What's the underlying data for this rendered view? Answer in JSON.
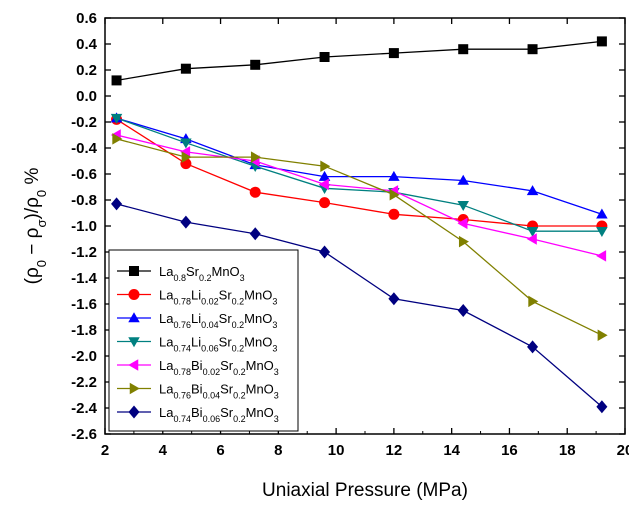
{
  "chart_data": {
    "type": "line",
    "xlabel": "Uniaxial Pressure (MPa)",
    "ylabel": {
      "parts": [
        {
          "t": "(ρ",
          "sub": false
        },
        {
          "t": "0",
          "sub": true
        },
        {
          "t": " − ρ",
          "sub": false
        },
        {
          "t": "σ",
          "sub": true
        },
        {
          "t": ")/ρ",
          "sub": false
        },
        {
          "t": "0",
          "sub": true
        },
        {
          "t": " %",
          "sub": false
        }
      ]
    },
    "xlim": [
      2,
      20
    ],
    "ylim": [
      -2.6,
      0.6
    ],
    "xticks": [
      2,
      4,
      6,
      8,
      10,
      12,
      14,
      16,
      18,
      20
    ],
    "yticks": [
      0.6,
      0.4,
      0.2,
      0.0,
      -0.2,
      -0.4,
      -0.6,
      -0.8,
      -1.0,
      -1.2,
      -1.4,
      -1.6,
      -1.8,
      -2.0,
      -2.2,
      -2.4,
      -2.6
    ],
    "legend_position": "bottom-left",
    "x": [
      2.4,
      4.8,
      7.2,
      9.6,
      12.0,
      14.4,
      16.8,
      19.2
    ],
    "series": [
      {
        "name": "La0.8Sr0.2MnO3",
        "name_parts": [
          {
            "t": "La",
            "sub": false
          },
          {
            "t": "0.8",
            "sub": true
          },
          {
            "t": "Sr",
            "sub": false
          },
          {
            "t": "0.2",
            "sub": true
          },
          {
            "t": "MnO",
            "sub": false
          },
          {
            "t": "3",
            "sub": true
          }
        ],
        "color": "#000000",
        "marker": "square",
        "values": [
          0.12,
          0.21,
          0.24,
          0.3,
          0.33,
          0.36,
          0.36,
          0.42
        ]
      },
      {
        "name": "La0.78Li0.02Sr0.2MnO3",
        "name_parts": [
          {
            "t": "La",
            "sub": false
          },
          {
            "t": "0.78",
            "sub": true
          },
          {
            "t": "Li",
            "sub": false
          },
          {
            "t": "0.02",
            "sub": true
          },
          {
            "t": "Sr",
            "sub": false
          },
          {
            "t": "0.2",
            "sub": true
          },
          {
            "t": "MnO",
            "sub": false
          },
          {
            "t": "3",
            "sub": true
          }
        ],
        "color": "#ff0000",
        "marker": "circle",
        "values": [
          -0.18,
          -0.52,
          -0.74,
          -0.82,
          -0.91,
          -0.95,
          -1.0,
          -1.0
        ]
      },
      {
        "name": "La0.76Li0.04Sr0.2MnO3",
        "name_parts": [
          {
            "t": "La",
            "sub": false
          },
          {
            "t": "0.76",
            "sub": true
          },
          {
            "t": "Li",
            "sub": false
          },
          {
            "t": "0.04",
            "sub": true
          },
          {
            "t": "Sr",
            "sub": false
          },
          {
            "t": "0.2",
            "sub": true
          },
          {
            "t": "MnO",
            "sub": false
          },
          {
            "t": "3",
            "sub": true
          }
        ],
        "color": "#0000ff",
        "marker": "triangle-up",
        "values": [
          -0.17,
          -0.33,
          -0.53,
          -0.62,
          -0.62,
          -0.65,
          -0.73,
          -0.91
        ]
      },
      {
        "name": "La0.74Li0.06Sr0.2MnO3",
        "name_parts": [
          {
            "t": "La",
            "sub": false
          },
          {
            "t": "0.74",
            "sub": true
          },
          {
            "t": "Li",
            "sub": false
          },
          {
            "t": "0.06",
            "sub": true
          },
          {
            "t": "Sr",
            "sub": false
          },
          {
            "t": "0.2",
            "sub": true
          },
          {
            "t": "MnO",
            "sub": false
          },
          {
            "t": "3",
            "sub": true
          }
        ],
        "color": "#008080",
        "marker": "triangle-down",
        "values": [
          -0.17,
          -0.36,
          -0.54,
          -0.71,
          -0.74,
          -0.84,
          -1.04,
          -1.04
        ]
      },
      {
        "name": "La0.78Bi0.02Sr0.2MnO3",
        "name_parts": [
          {
            "t": "La",
            "sub": false
          },
          {
            "t": "0.78",
            "sub": true
          },
          {
            "t": "Bi",
            "sub": false
          },
          {
            "t": "0.02",
            "sub": true
          },
          {
            "t": "Sr",
            "sub": false
          },
          {
            "t": "0.2",
            "sub": true
          },
          {
            "t": "MnO",
            "sub": false
          },
          {
            "t": "3",
            "sub": true
          }
        ],
        "color": "#ff00ff",
        "marker": "triangle-left",
        "values": [
          -0.3,
          -0.43,
          -0.5,
          -0.68,
          -0.73,
          -0.98,
          -1.1,
          -1.23
        ]
      },
      {
        "name": "La0.76Bi0.04Sr0.2MnO3",
        "name_parts": [
          {
            "t": "La",
            "sub": false
          },
          {
            "t": "0.76",
            "sub": true
          },
          {
            "t": "Bi",
            "sub": false
          },
          {
            "t": "0.04",
            "sub": true
          },
          {
            "t": "Sr",
            "sub": false
          },
          {
            "t": "0.2",
            "sub": true
          },
          {
            "t": "MnO",
            "sub": false
          },
          {
            "t": "3",
            "sub": true
          }
        ],
        "color": "#808000",
        "marker": "triangle-right",
        "values": [
          -0.33,
          -0.47,
          -0.47,
          -0.54,
          -0.76,
          -1.12,
          -1.58,
          -1.84
        ]
      },
      {
        "name": "La0.74Bi0.06Sr0.2MnO3",
        "name_parts": [
          {
            "t": "La",
            "sub": false
          },
          {
            "t": "0.74",
            "sub": true
          },
          {
            "t": "Bi",
            "sub": false
          },
          {
            "t": "0.06",
            "sub": true
          },
          {
            "t": "Sr",
            "sub": false
          },
          {
            "t": "0.2",
            "sub": true
          },
          {
            "t": "MnO",
            "sub": false
          },
          {
            "t": "3",
            "sub": true
          }
        ],
        "color": "#000080",
        "marker": "diamond",
        "values": [
          -0.83,
          -0.97,
          -1.06,
          -1.2,
          -1.56,
          -1.65,
          -1.93,
          -2.39
        ]
      }
    ]
  }
}
